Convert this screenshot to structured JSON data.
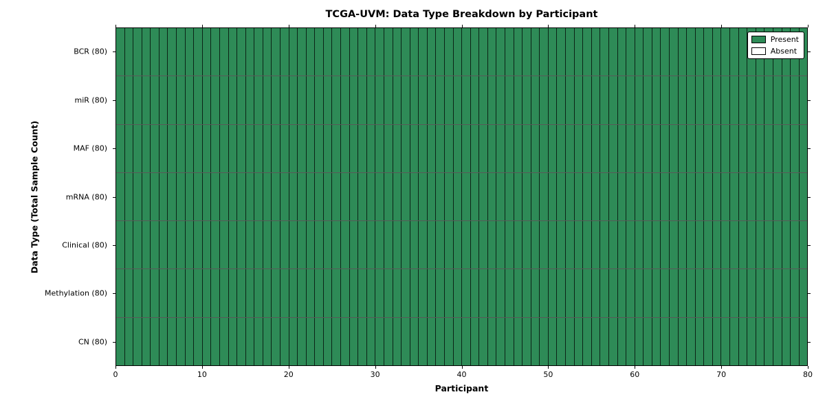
{
  "chart_data": {
    "type": "heatmap",
    "title": "TCGA-UVM: Data Type Breakdown by Participant",
    "xlabel": "Participant",
    "ylabel": "Data Type (Total Sample Count)",
    "xlim": [
      0,
      80
    ],
    "x_ticks": [
      0,
      10,
      20,
      30,
      40,
      50,
      60,
      70,
      80
    ],
    "n_participants": 80,
    "rows": [
      {
        "name": "BCR",
        "label": "BCR (80)",
        "total_samples": 80,
        "present_count": 80,
        "absent_count": 0
      },
      {
        "name": "miR",
        "label": "miR (80)",
        "total_samples": 80,
        "present_count": 80,
        "absent_count": 0
      },
      {
        "name": "MAF",
        "label": "MAF (80)",
        "total_samples": 80,
        "present_count": 80,
        "absent_count": 0
      },
      {
        "name": "mRNA",
        "label": "mRNA (80)",
        "total_samples": 80,
        "present_count": 80,
        "absent_count": 0
      },
      {
        "name": "Clinical",
        "label": "Clinical (80)",
        "total_samples": 80,
        "present_count": 80,
        "absent_count": 0
      },
      {
        "name": "Methylation",
        "label": "Methylation (80)",
        "total_samples": 80,
        "present_count": 80,
        "absent_count": 0
      },
      {
        "name": "CN",
        "label": "CN (80)",
        "total_samples": 80,
        "present_count": 80,
        "absent_count": 0
      }
    ],
    "legend": [
      {
        "label": "Present",
        "color": "#2e8b57"
      },
      {
        "label": "Absent",
        "color": "#ffffff"
      }
    ],
    "legend_position": "upper right",
    "colors": {
      "present": "#2e8b57",
      "absent": "#ffffff",
      "edge": "#000000",
      "background": "#ffffff"
    },
    "grid": true
  }
}
